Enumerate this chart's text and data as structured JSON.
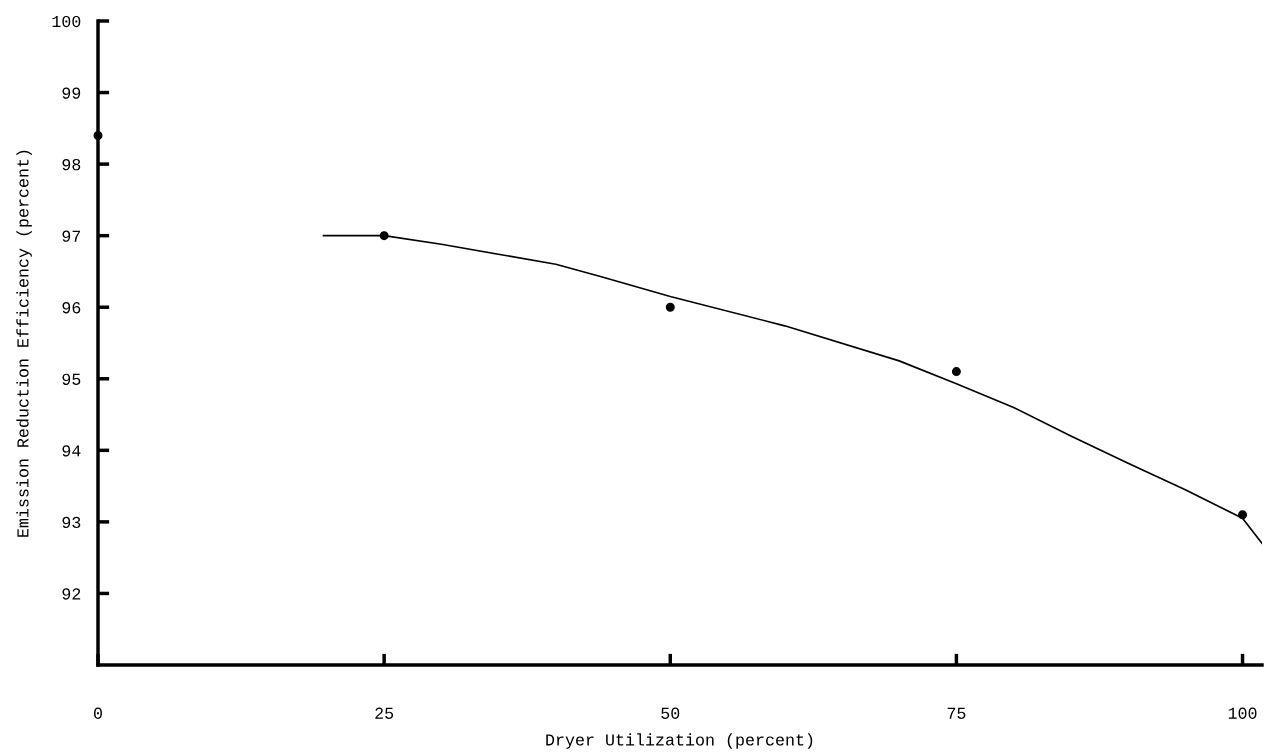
{
  "chart_data": {
    "type": "scatter",
    "xlabel": "Dryer Utilization (percent)",
    "ylabel": "Emission Reduction Efficiency (percent)",
    "xlim": [
      0,
      101.7
    ],
    "xticks": [
      0,
      25,
      50,
      75,
      100
    ],
    "ylim": [
      91,
      100
    ],
    "yticks": [
      92,
      93,
      94,
      95,
      96,
      97,
      98,
      99,
      100
    ],
    "grid": false,
    "legend": false,
    "marker": "circle",
    "series": [
      {
        "color": "#000000",
        "x": [
          0,
          25,
          50,
          75,
          100
        ],
        "values": [
          98.4,
          97.0,
          96.0,
          95.1,
          93.1
        ]
      },
      {
        "type": "line",
        "color": "#000000",
        "line_style": "solid",
        "marker": "none",
        "x": [
          19.7,
          25,
          30,
          40,
          43.9,
          50,
          60,
          70,
          75,
          80,
          85,
          90,
          95,
          100,
          101.7
        ],
        "values": [
          97.0,
          97.0,
          96.88,
          96.6,
          96.43,
          96.15,
          95.74,
          95.25,
          94.93,
          94.6,
          94.2,
          93.82,
          93.45,
          93.05,
          92.7
        ]
      }
    ]
  }
}
